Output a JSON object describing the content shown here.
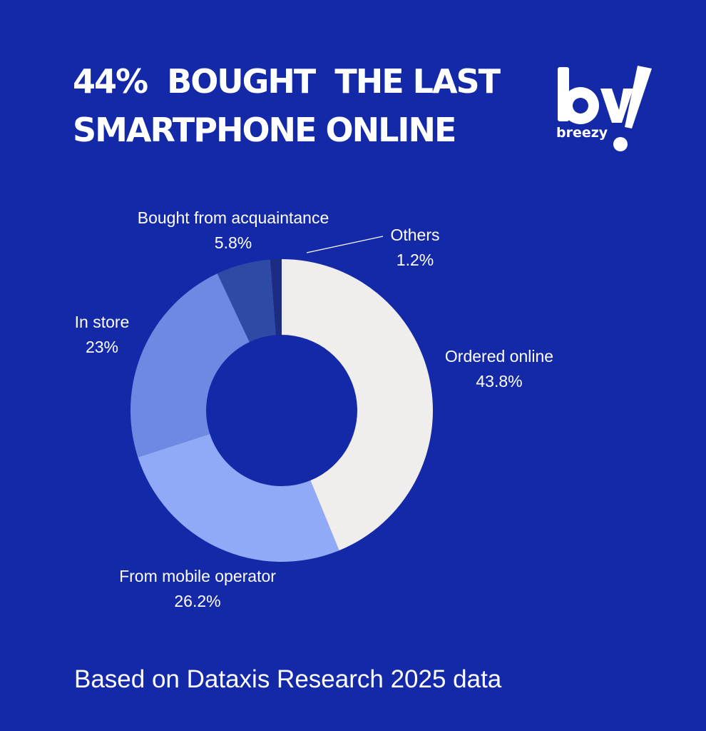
{
  "title_lines": [
    "44%  BOUGHT  THE LAST",
    "SMARTPHONE ONLINE"
  ],
  "logo": {
    "icon": "breezy-logo",
    "text": "breezy"
  },
  "footnote": "Based on Dataxis Research 2025 data",
  "colors": {
    "background": "#1429a8",
    "slices": [
      "#efeeec",
      "#91aaf8",
      "#6e89e1",
      "#2e4aa4",
      "#1b2c82"
    ]
  },
  "chart_data": {
    "type": "pie",
    "donut": true,
    "slices": [
      {
        "label": "Ordered online",
        "value": 43.8,
        "display": "43.8%"
      },
      {
        "label": "From mobile operator",
        "value": 26.2,
        "display": "26.2%"
      },
      {
        "label": "In store",
        "value": 23,
        "display": "23%"
      },
      {
        "label": "Bought from acquaintance",
        "value": 5.8,
        "display": "5.8%"
      },
      {
        "label": "Others",
        "value": 1.2,
        "display": "1.2%"
      }
    ]
  }
}
